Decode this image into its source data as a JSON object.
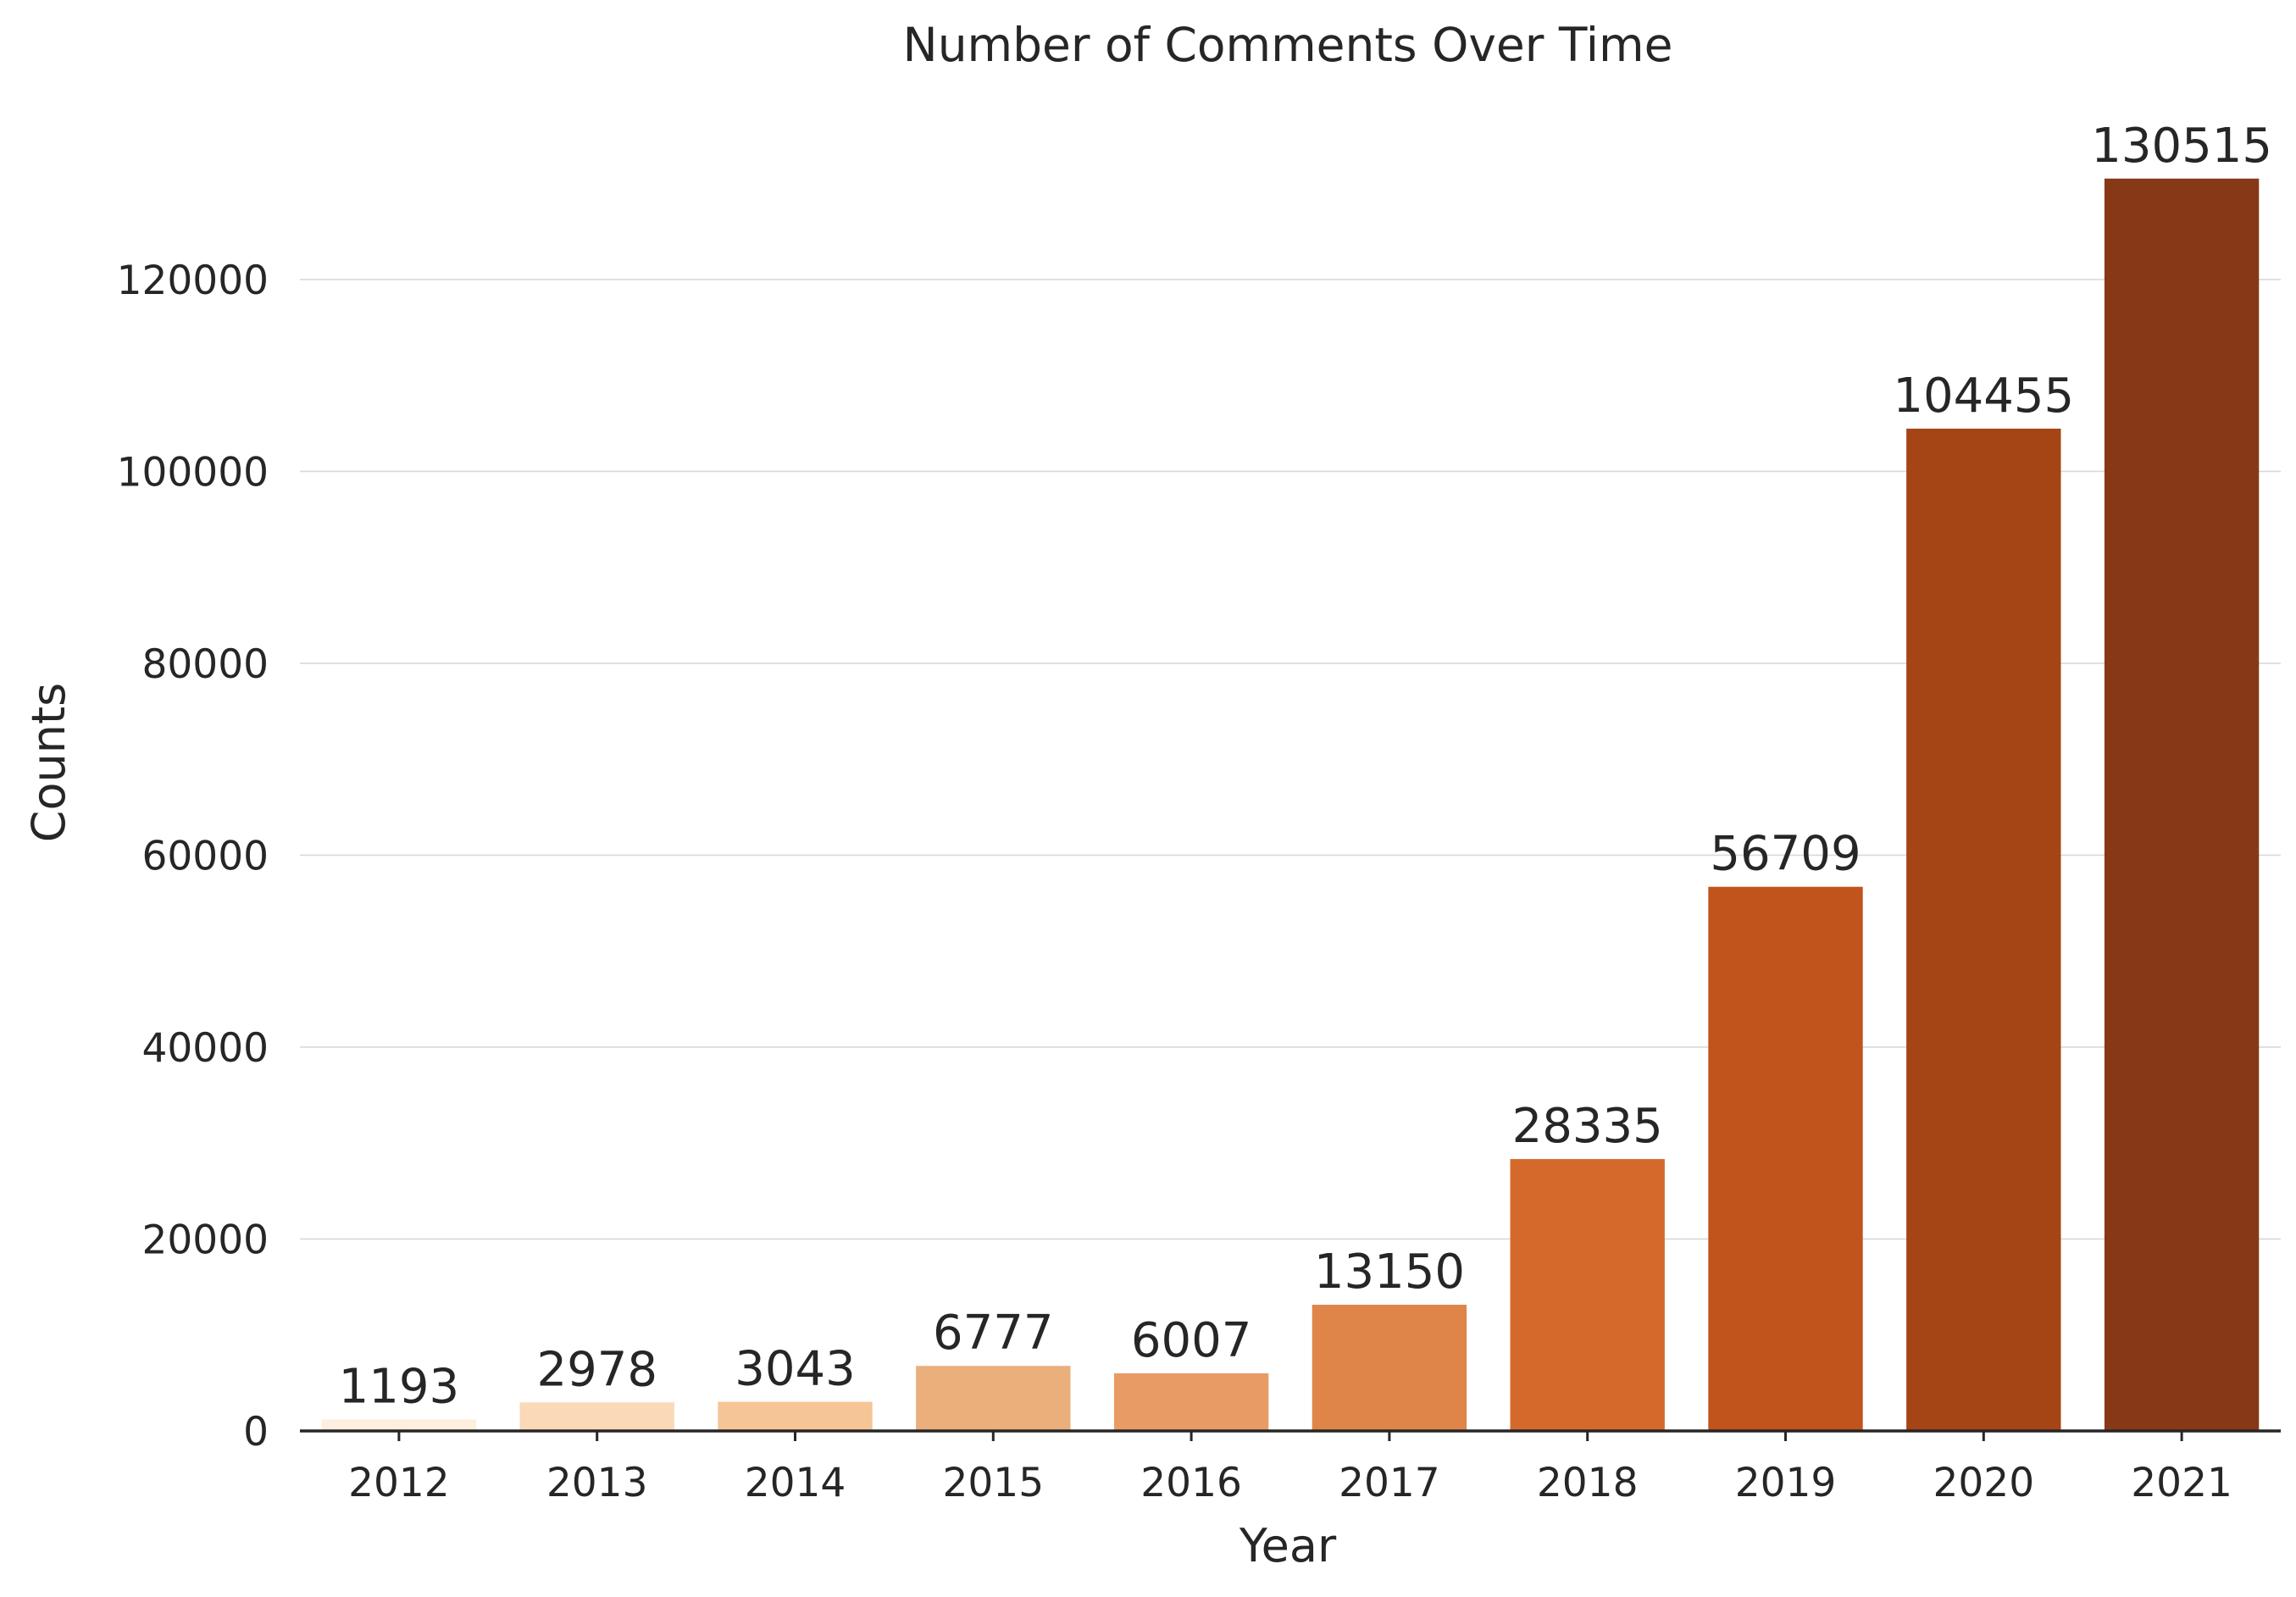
{
  "chart_data": {
    "type": "bar",
    "title": "Number of Comments Over Time",
    "xlabel": "Year",
    "ylabel": "Counts",
    "categories": [
      "2012",
      "2013",
      "2014",
      "2015",
      "2016",
      "2017",
      "2018",
      "2019",
      "2020",
      "2021"
    ],
    "values": [
      1193,
      2978,
      3043,
      6777,
      6007,
      13150,
      28335,
      56709,
      104455,
      130515
    ],
    "value_labels": [
      "1193",
      "2978",
      "3043",
      "6777",
      "6007",
      "13150",
      "28335",
      "56709",
      "104455",
      "130515"
    ],
    "colors": [
      "#fdeedd",
      "#fad9b8",
      "#f6c596",
      "#ebaf7c",
      "#e89c63",
      "#df8549",
      "#d36a2c",
      "#c1541c",
      "#a54516",
      "#873917"
    ],
    "yticks": [
      0,
      20000,
      40000,
      60000,
      80000,
      100000,
      120000
    ],
    "ytick_labels": [
      "0",
      "20000",
      "40000",
      "60000",
      "80000",
      "100000",
      "120000"
    ],
    "ylim": [
      0,
      135000
    ],
    "grid": "horizontal",
    "legend": "none"
  }
}
